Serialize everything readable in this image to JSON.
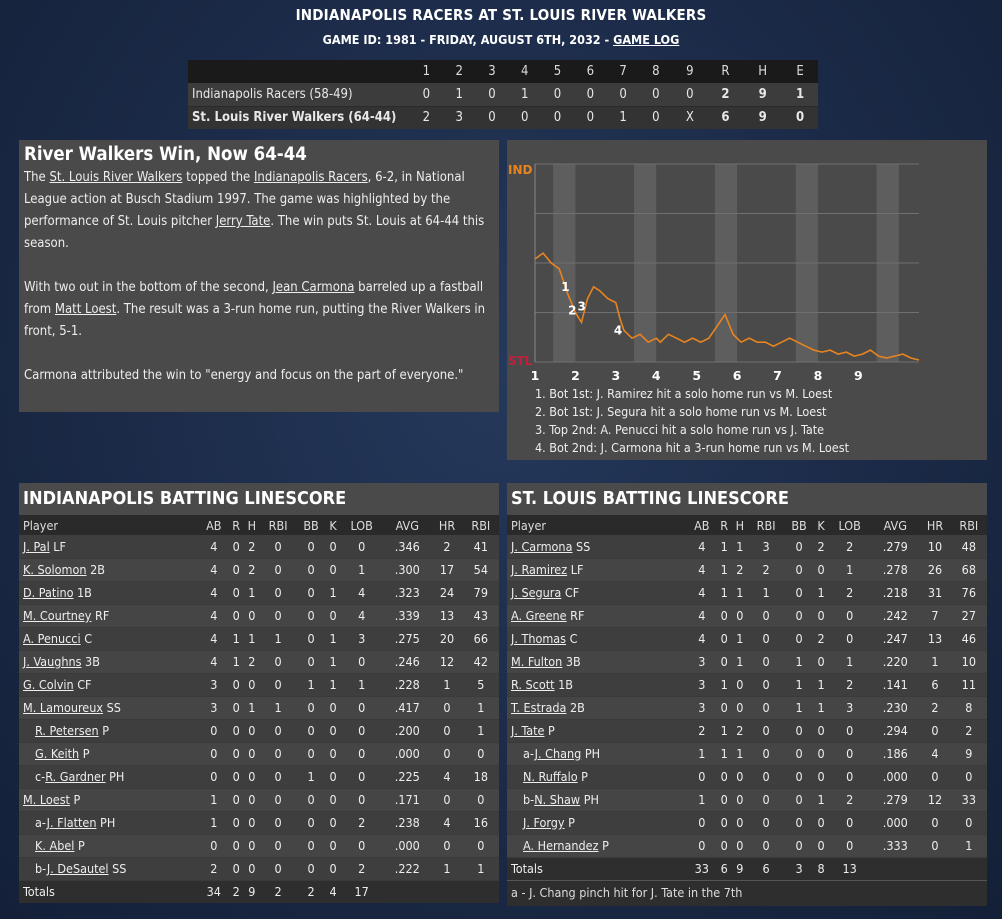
{
  "header": {
    "title": "INDIANAPOLIS RACERS AT ST. LOUIS RIVER WALKERS",
    "subtitle": "GAME ID: 1981 - FRIDAY, AUGUST 6TH, 2032 - ",
    "game_log_link": "GAME LOG"
  },
  "linescore": {
    "columns": [
      "1",
      "2",
      "3",
      "4",
      "5",
      "6",
      "7",
      "8",
      "9",
      "R",
      "H",
      "E"
    ],
    "away": {
      "team": "Indianapolis Racers (58-49)",
      "innings": [
        "0",
        "1",
        "0",
        "1",
        "0",
        "0",
        "0",
        "0",
        "0"
      ],
      "R": "2",
      "H": "9",
      "E": "1"
    },
    "home": {
      "team": "St. Louis River Walkers (64-44)",
      "innings": [
        "2",
        "3",
        "0",
        "0",
        "0",
        "0",
        "1",
        "0",
        "X"
      ],
      "R": "6",
      "H": "9",
      "E": "0"
    }
  },
  "recap": {
    "headline": "River Walkers Win, Now 64-44",
    "p1": {
      "t1": "The ",
      "l1": "St. Louis River Walkers",
      "t2": " topped the ",
      "l2": "Indianapolis Racers",
      "t3": ", 6-2, in National League action at Busch Stadium 1997. The game was highlighted by the performance of St. Louis pitcher ",
      "l3": "Jerry Tate",
      "t4": ". The win puts St. Louis at 64-44 this season."
    },
    "p2": {
      "t1": "With two out in the bottom of the second, ",
      "l1": "Jean Carmona",
      "t2": " barreled up a fastball from ",
      "l2": "Matt Loest",
      "t3": ". The result was a 3-run home run, putting the River Walkers in front, 5-1."
    },
    "p3": "Carmona attributed the win to \"energy and focus on the part of everyone.\""
  },
  "chart_data": {
    "type": "line",
    "y_top_label": "IND",
    "y_bottom_label": "STL",
    "inning_labels": [
      "1",
      "2",
      "3",
      "4",
      "5",
      "6",
      "7",
      "8",
      "9"
    ],
    "colors": {
      "ind": "#e8841e",
      "stl": "#c0203c",
      "line": "#e8841e",
      "line_dark": "#c0203c"
    },
    "x": [
      0,
      0.2,
      0.4,
      0.6,
      0.8,
      1.0,
      1.15,
      1.3,
      1.45,
      1.6,
      1.8,
      2.0,
      2.1,
      2.2,
      2.4,
      2.6,
      2.8,
      3.0,
      3.1,
      3.3,
      3.5,
      3.7,
      3.9,
      4.1,
      4.3,
      4.5,
      4.7,
      4.9,
      5.1,
      5.3,
      5.5,
      5.7,
      5.9,
      6.1,
      6.3,
      6.5,
      6.7,
      6.9,
      7.1,
      7.3,
      7.5,
      7.7,
      7.9,
      8.1,
      8.3,
      8.5,
      8.7,
      8.9,
      9.1,
      9.3,
      9.5
    ],
    "y": [
      0.52,
      0.55,
      0.5,
      0.47,
      0.35,
      0.25,
      0.2,
      0.32,
      0.38,
      0.36,
      0.32,
      0.3,
      0.22,
      0.16,
      0.12,
      0.14,
      0.1,
      0.12,
      0.1,
      0.14,
      0.12,
      0.1,
      0.12,
      0.1,
      0.12,
      0.18,
      0.24,
      0.14,
      0.1,
      0.12,
      0.1,
      0.1,
      0.08,
      0.1,
      0.12,
      0.1,
      0.08,
      0.06,
      0.05,
      0.06,
      0.04,
      0.05,
      0.03,
      0.04,
      0.06,
      0.03,
      0.02,
      0.03,
      0.04,
      0.02,
      0.01
    ],
    "events": [
      {
        "label": "1",
        "x": 0.65,
        "y": 0.38
      },
      {
        "label": "2",
        "x": 0.82,
        "y": 0.26
      },
      {
        "label": "3",
        "x": 1.05,
        "y": 0.28
      },
      {
        "label": "4",
        "x": 1.95,
        "y": 0.16
      }
    ]
  },
  "events_text": [
    "1. Bot 1st: J. Ramirez hit a solo home run vs M. Loest",
    "2. Bot 1st: J. Segura hit a solo home run vs M. Loest",
    "3. Top 2nd: A. Penucci hit a solo home run vs J. Tate",
    "4. Bot 2nd: J. Carmona hit a 3-run home run vs M. Loest"
  ],
  "ind_batting": {
    "title": "INDIANAPOLIS BATTING LINESCORE",
    "columns": [
      "Player",
      "AB",
      "R",
      "H",
      "RBI",
      "BB",
      "K",
      "LOB",
      "AVG",
      "HR",
      "RBI"
    ],
    "rows": [
      {
        "prefix": "",
        "name": "J. Pal",
        "pos": " LF",
        "sub": false,
        "stats": [
          "4",
          "0",
          "2",
          "0",
          "0",
          "0",
          "0",
          ".346",
          "2",
          "41"
        ]
      },
      {
        "prefix": "",
        "name": "K. Solomon",
        "pos": " 2B",
        "sub": false,
        "stats": [
          "4",
          "0",
          "2",
          "0",
          "0",
          "0",
          "1",
          ".300",
          "17",
          "54"
        ]
      },
      {
        "prefix": "",
        "name": "D. Patino",
        "pos": " 1B",
        "sub": false,
        "stats": [
          "4",
          "0",
          "1",
          "0",
          "0",
          "1",
          "4",
          ".323",
          "24",
          "79"
        ]
      },
      {
        "prefix": "",
        "name": "M. Courtney",
        "pos": " RF",
        "sub": false,
        "stats": [
          "4",
          "0",
          "0",
          "0",
          "0",
          "0",
          "4",
          ".339",
          "13",
          "43"
        ]
      },
      {
        "prefix": "",
        "name": "A. Penucci",
        "pos": " C",
        "sub": false,
        "stats": [
          "4",
          "1",
          "1",
          "1",
          "0",
          "1",
          "3",
          ".275",
          "20",
          "66"
        ]
      },
      {
        "prefix": "",
        "name": "J. Vaughns",
        "pos": " 3B",
        "sub": false,
        "stats": [
          "4",
          "1",
          "2",
          "0",
          "0",
          "1",
          "0",
          ".246",
          "12",
          "42"
        ]
      },
      {
        "prefix": "",
        "name": "G. Colvin",
        "pos": " CF",
        "sub": false,
        "stats": [
          "3",
          "0",
          "0",
          "0",
          "1",
          "1",
          "1",
          ".228",
          "1",
          "5"
        ]
      },
      {
        "prefix": "",
        "name": "M. Lamoureux",
        "pos": " SS",
        "sub": false,
        "stats": [
          "3",
          "0",
          "1",
          "1",
          "0",
          "0",
          "0",
          ".417",
          "0",
          "1"
        ]
      },
      {
        "prefix": "",
        "name": "R. Petersen",
        "pos": " P",
        "sub": true,
        "stats": [
          "0",
          "0",
          "0",
          "0",
          "0",
          "0",
          "0",
          ".200",
          "0",
          "1"
        ]
      },
      {
        "prefix": "",
        "name": "G. Keith",
        "pos": " P",
        "sub": true,
        "stats": [
          "0",
          "0",
          "0",
          "0",
          "0",
          "0",
          "0",
          ".000",
          "0",
          "0"
        ]
      },
      {
        "prefix": "c-",
        "name": "R. Gardner",
        "pos": " PH",
        "sub": true,
        "stats": [
          "0",
          "0",
          "0",
          "0",
          "1",
          "0",
          "0",
          ".225",
          "4",
          "18"
        ]
      },
      {
        "prefix": "",
        "name": "M. Loest",
        "pos": " P",
        "sub": false,
        "stats": [
          "1",
          "0",
          "0",
          "0",
          "0",
          "0",
          "0",
          ".171",
          "0",
          "0"
        ]
      },
      {
        "prefix": "a-",
        "name": "J. Flatten",
        "pos": " PH",
        "sub": true,
        "stats": [
          "1",
          "0",
          "0",
          "0",
          "0",
          "0",
          "2",
          ".238",
          "4",
          "16"
        ]
      },
      {
        "prefix": "",
        "name": "K. Abel",
        "pos": " P",
        "sub": true,
        "stats": [
          "0",
          "0",
          "0",
          "0",
          "0",
          "0",
          "0",
          ".000",
          "0",
          "0"
        ]
      },
      {
        "prefix": "b-",
        "name": "J. DeSautel",
        "pos": " SS",
        "sub": true,
        "stats": [
          "2",
          "0",
          "0",
          "0",
          "0",
          "0",
          "2",
          ".222",
          "1",
          "1"
        ]
      }
    ],
    "totals": {
      "label": "Totals",
      "stats": [
        "34",
        "2",
        "9",
        "2",
        "2",
        "4",
        "17",
        "",
        "",
        ""
      ]
    },
    "footnote": ""
  },
  "stl_batting": {
    "title": "ST. LOUIS BATTING LINESCORE",
    "columns": [
      "Player",
      "AB",
      "R",
      "H",
      "RBI",
      "BB",
      "K",
      "LOB",
      "AVG",
      "HR",
      "RBI"
    ],
    "rows": [
      {
        "prefix": "",
        "name": "J. Carmona",
        "pos": " SS",
        "sub": false,
        "stats": [
          "4",
          "1",
          "1",
          "3",
          "0",
          "2",
          "2",
          ".279",
          "10",
          "48"
        ]
      },
      {
        "prefix": "",
        "name": "J. Ramirez",
        "pos": " LF",
        "sub": false,
        "stats": [
          "4",
          "1",
          "2",
          "2",
          "0",
          "0",
          "1",
          ".278",
          "26",
          "68"
        ]
      },
      {
        "prefix": "",
        "name": "J. Segura",
        "pos": " CF",
        "sub": false,
        "stats": [
          "4",
          "1",
          "1",
          "1",
          "0",
          "1",
          "2",
          ".218",
          "31",
          "76"
        ]
      },
      {
        "prefix": "",
        "name": "A. Greene",
        "pos": " RF",
        "sub": false,
        "stats": [
          "4",
          "0",
          "0",
          "0",
          "0",
          "0",
          "0",
          ".242",
          "7",
          "27"
        ]
      },
      {
        "prefix": "",
        "name": "J. Thomas",
        "pos": " C",
        "sub": false,
        "stats": [
          "4",
          "0",
          "1",
          "0",
          "0",
          "2",
          "0",
          ".247",
          "13",
          "46"
        ]
      },
      {
        "prefix": "",
        "name": "M. Fulton",
        "pos": " 3B",
        "sub": false,
        "stats": [
          "3",
          "0",
          "1",
          "0",
          "1",
          "0",
          "1",
          ".220",
          "1",
          "10"
        ]
      },
      {
        "prefix": "",
        "name": "R. Scott",
        "pos": " 1B",
        "sub": false,
        "stats": [
          "3",
          "1",
          "0",
          "0",
          "1",
          "1",
          "2",
          ".141",
          "6",
          "11"
        ]
      },
      {
        "prefix": "",
        "name": "T. Estrada",
        "pos": " 2B",
        "sub": false,
        "stats": [
          "3",
          "0",
          "0",
          "0",
          "1",
          "1",
          "3",
          ".230",
          "2",
          "8"
        ]
      },
      {
        "prefix": "",
        "name": "J. Tate",
        "pos": " P",
        "sub": false,
        "stats": [
          "2",
          "1",
          "2",
          "0",
          "0",
          "0",
          "0",
          ".294",
          "0",
          "2"
        ]
      },
      {
        "prefix": "a-",
        "name": "J. Chang",
        "pos": " PH",
        "sub": true,
        "stats": [
          "1",
          "1",
          "1",
          "0",
          "0",
          "0",
          "0",
          ".186",
          "4",
          "9"
        ]
      },
      {
        "prefix": "",
        "name": "N. Ruffalo",
        "pos": " P",
        "sub": true,
        "stats": [
          "0",
          "0",
          "0",
          "0",
          "0",
          "0",
          "0",
          ".000",
          "0",
          "0"
        ]
      },
      {
        "prefix": "b-",
        "name": "N. Shaw",
        "pos": " PH",
        "sub": true,
        "stats": [
          "1",
          "0",
          "0",
          "0",
          "0",
          "1",
          "2",
          ".279",
          "12",
          "33"
        ]
      },
      {
        "prefix": "",
        "name": "J. Forgy",
        "pos": " P",
        "sub": true,
        "stats": [
          "0",
          "0",
          "0",
          "0",
          "0",
          "0",
          "0",
          ".000",
          "0",
          "0"
        ]
      },
      {
        "prefix": "",
        "name": "A. Hernandez",
        "pos": " P",
        "sub": true,
        "stats": [
          "0",
          "0",
          "0",
          "0",
          "0",
          "0",
          "0",
          ".333",
          "0",
          "1"
        ]
      }
    ],
    "totals": {
      "label": "Totals",
      "stats": [
        "33",
        "6",
        "9",
        "6",
        "3",
        "8",
        "13",
        "",
        "",
        ""
      ]
    },
    "footnote": "a - J. Chang pinch hit for J. Tate in the 7th"
  }
}
